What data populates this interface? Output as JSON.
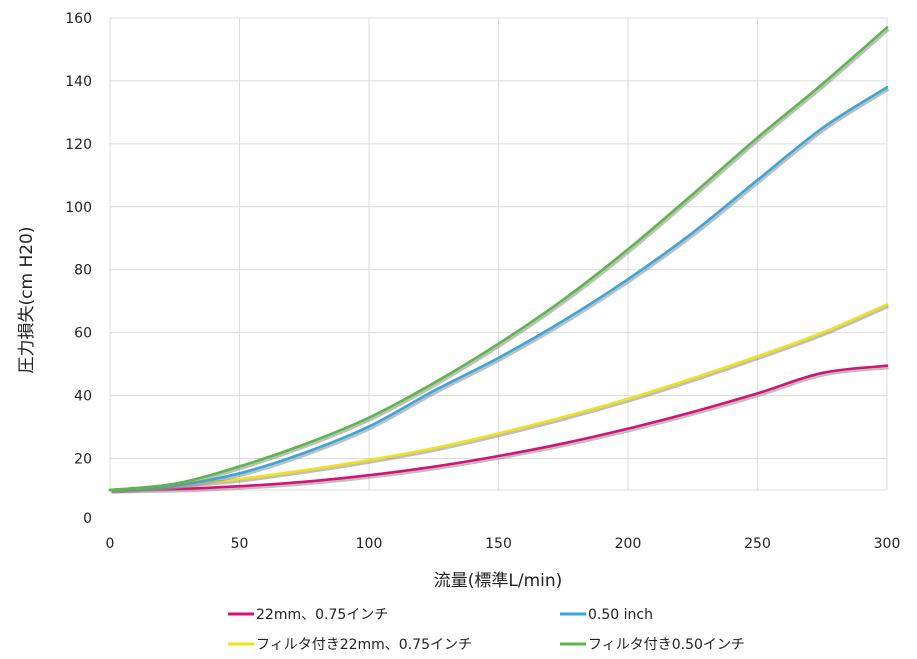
{
  "chart_data": {
    "type": "line",
    "title": "",
    "xlabel": "流量(標準L/min)",
    "ylabel": "圧力損失(cm H20)",
    "xlim": [
      0,
      300
    ],
    "ylim": [
      0,
      160
    ],
    "x_ticks": [
      0,
      50,
      100,
      150,
      200,
      250,
      300
    ],
    "y_ticks": [
      0,
      20,
      40,
      60,
      80,
      100,
      120,
      140,
      160
    ],
    "grid": true,
    "legend_position": "bottom",
    "series": [
      {
        "name": "22mm、0.75インチ",
        "color": "#d6127a",
        "x": [
          0,
          25,
          50,
          75,
          100,
          125,
          150,
          175,
          200,
          225,
          250,
          275,
          300
        ],
        "y": [
          10,
          10.3,
          11.2,
          12.6,
          14.7,
          17.4,
          20.8,
          24.8,
          29.5,
          34.8,
          40.7,
          47.2,
          49.5
        ]
      },
      {
        "name": "0.50 inch",
        "color": "#3aa6dc",
        "x": [
          0,
          25,
          50,
          75,
          100,
          125,
          150,
          175,
          200,
          225,
          250,
          275,
          300
        ],
        "y": [
          10,
          11.4,
          15.3,
          21.8,
          30.2,
          41.5,
          52.0,
          63.8,
          77.0,
          91.8,
          108.5,
          125.0,
          138.0
        ]
      },
      {
        "name": "フィルタ付き22mm、0.75インチ",
        "color": "#f2e21a",
        "x": [
          0,
          25,
          50,
          75,
          100,
          125,
          150,
          175,
          200,
          225,
          250,
          275,
          300
        ],
        "y": [
          10,
          11.5,
          13.5,
          16.3,
          19.5,
          23.3,
          28.0,
          33.2,
          39.0,
          45.5,
          52.5,
          60.0,
          69.0
        ]
      },
      {
        "name": "フィルタ付き0.50インチ",
        "color": "#5ab848",
        "x": [
          0,
          25,
          50,
          75,
          100,
          125,
          150,
          175,
          200,
          225,
          250,
          275,
          300
        ],
        "y": [
          10,
          12.0,
          17.5,
          24.5,
          33.0,
          44.0,
          56.5,
          70.5,
          86.5,
          104.0,
          122.0,
          139.0,
          157.0
        ]
      }
    ]
  }
}
